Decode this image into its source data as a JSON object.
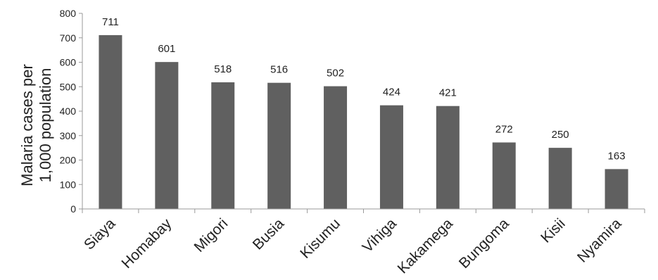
{
  "chart_data": {
    "type": "bar",
    "categories": [
      "Siaya",
      "Homabay",
      "Migori",
      "Busia",
      "Kisumu",
      "Vihiga",
      "Kakamega",
      "Bungoma",
      "Kisii",
      "Nyamira"
    ],
    "values": [
      711,
      601,
      518,
      516,
      502,
      424,
      421,
      272,
      250,
      163
    ],
    "data_labels": [
      "711",
      "601",
      "518",
      "516",
      "502",
      "424",
      "421",
      "272",
      "250",
      "163"
    ],
    "ylabel_lines": [
      "Malaria cases per",
      "1,000 population"
    ],
    "xlabel": "",
    "ylim": [
      0,
      800
    ],
    "yticks": [
      0,
      100,
      200,
      300,
      400,
      500,
      600,
      700,
      800
    ],
    "bar_color": "#606060",
    "grid": false,
    "legend": "none"
  }
}
